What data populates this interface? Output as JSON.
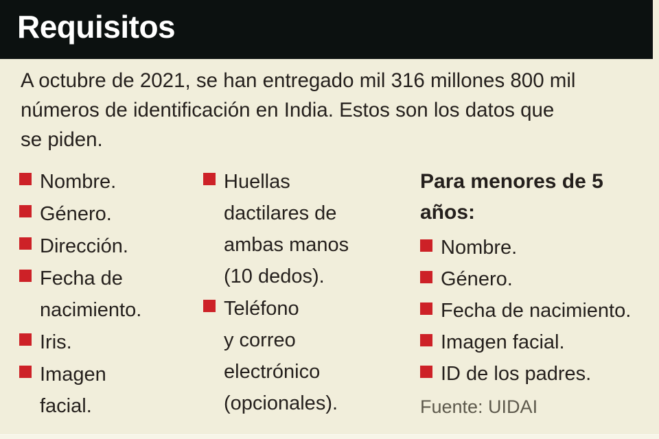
{
  "header": {
    "title": "Requisitos"
  },
  "intro": {
    "text": "A octubre de 2021, se han entregado mil 316 millones 800 mil\nnúmeros de identificación en India. Estos son los datos que\nse piden."
  },
  "columns": {
    "general": {
      "items": [
        "Nombre.",
        "Género.",
        "Dirección.",
        "Fecha de\nnacimiento.",
        "Iris.",
        "Imagen\nfacial."
      ]
    },
    "biometric": {
      "items": [
        "Huellas\ndactilares de\nambas manos\n(10 dedos).",
        "Teléfono\ny correo\nelectrónico\n(opcionales)."
      ]
    },
    "minors": {
      "heading": "Para menores de 5\naños:",
      "items": [
        "Nombre.",
        "Género.",
        "Fecha de nacimiento.",
        "Imagen facial.",
        "ID de los padres."
      ],
      "source": "Fuente: UIDAI"
    }
  },
  "colors": {
    "header_bg": "#0c1110",
    "background": "#f1eedb",
    "bullet_red": "#cd2127",
    "text": "#241f1c",
    "source_gray": "#5d594c"
  }
}
